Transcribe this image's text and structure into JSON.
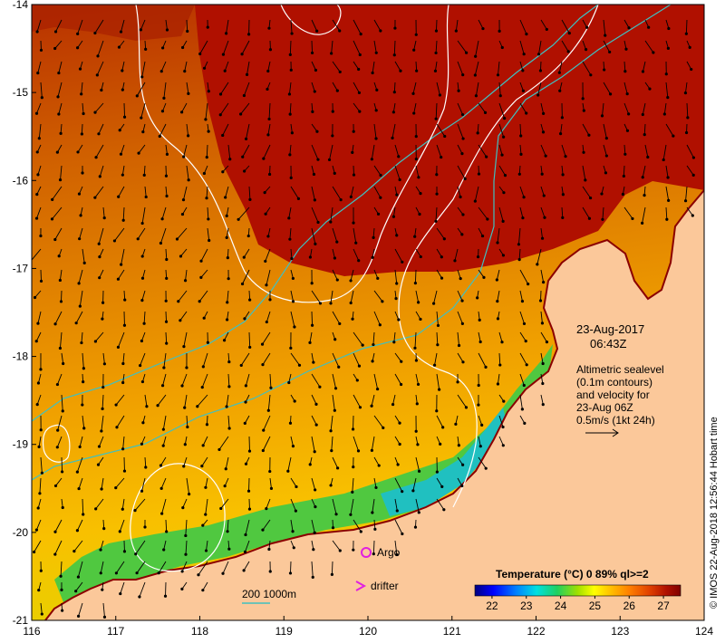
{
  "map": {
    "lon_range": [
      116,
      124
    ],
    "lat_range": [
      -21,
      -14
    ],
    "lon_ticks": [
      "116",
      "117",
      "118",
      "119",
      "120",
      "121",
      "122",
      "123",
      "124"
    ],
    "lat_ticks": [
      "-14",
      "-15",
      "-16",
      "-17",
      "-18",
      "-19",
      "-20",
      "-21"
    ],
    "colors": {
      "land": "#fbc89a",
      "warm_sea": "#b01000",
      "coast_line": "#8b0000",
      "isobath": "#40c0c0",
      "contour": "#ffffff",
      "argo": "#e020e0"
    }
  },
  "annotations": {
    "date": "23-Aug-2017",
    "time": "06:43Z",
    "desc_line1": "Altimetric sealevel",
    "desc_line2": "(0.1m contours)",
    "desc_line3": "and velocity for",
    "desc_line4": "23-Aug 06Z",
    "desc_line5": "0.5m/s (1kt 24h)",
    "argo_label": "Argo",
    "drifter_label": "drifter",
    "isobath_label": "200  1000m",
    "credit": "© IMOS 22-Aug-2018 12:56:44 Hobart time"
  },
  "colorbar": {
    "title": "Temperature (°C) 0 89% ql>=2",
    "ticks": [
      "22",
      "23",
      "24",
      "25",
      "26",
      "27"
    ],
    "range": [
      21.5,
      27.5
    ],
    "colors": [
      "#000080",
      "#0000ff",
      "#0080ff",
      "#00e0e0",
      "#20d060",
      "#a0e000",
      "#ffff00",
      "#ffc000",
      "#ff8000",
      "#e04000",
      "#b01000",
      "#800000"
    ]
  }
}
